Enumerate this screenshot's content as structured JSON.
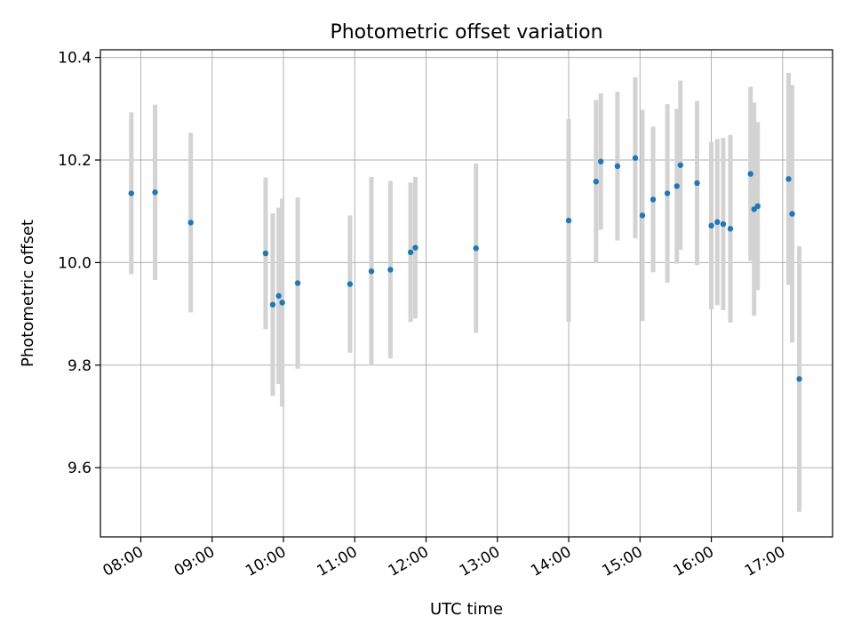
{
  "chart_data": {
    "type": "scatter",
    "title": "Photometric offset variation",
    "xlabel": "UTC time",
    "ylabel": "Photometric offset",
    "xlim": [
      "07:26",
      "17:42"
    ],
    "ylim": [
      9.465,
      10.415
    ],
    "x_ticks": [
      "08:00",
      "09:00",
      "10:00",
      "11:00",
      "12:00",
      "13:00",
      "14:00",
      "15:00",
      "16:00",
      "17:00"
    ],
    "y_ticks": [
      "9.6",
      "9.8",
      "10.0",
      "10.2",
      "10.4"
    ],
    "grid": true,
    "legend": "none",
    "point_color": "#1f77b4",
    "errorbar_color": "#d3d3d3",
    "x": [
      "07:52",
      "08:12",
      "08:42",
      "09:45",
      "09:51",
      "09:56",
      "09:59",
      "10:12",
      "10:56",
      "11:14",
      "11:30",
      "11:47",
      "11:51",
      "12:42",
      "14:00",
      "14:23",
      "14:27",
      "14:41",
      "14:56",
      "15:02",
      "15:11",
      "15:23",
      "15:31",
      "15:34",
      "15:48",
      "16:00",
      "16:05",
      "16:10",
      "16:16",
      "16:33",
      "16:36",
      "16:39",
      "17:05",
      "17:08",
      "17:14"
    ],
    "y": [
      10.135,
      10.137,
      10.078,
      10.018,
      9.918,
      9.935,
      9.922,
      9.96,
      9.958,
      9.983,
      9.986,
      10.02,
      10.029,
      10.028,
      10.082,
      10.158,
      10.197,
      10.188,
      10.204,
      10.092,
      10.123,
      10.135,
      10.149,
      10.19,
      10.155,
      10.072,
      10.079,
      10.075,
      10.066,
      10.173,
      10.104,
      10.11,
      10.163,
      10.095,
      9.773
    ],
    "yerr": [
      0.158,
      0.171,
      0.175,
      0.148,
      0.178,
      0.172,
      0.203,
      0.167,
      0.134,
      0.184,
      0.173,
      0.136,
      0.138,
      0.165,
      0.198,
      0.159,
      0.133,
      0.145,
      0.157,
      0.206,
      0.142,
      0.174,
      0.151,
      0.165,
      0.16,
      0.163,
      0.162,
      0.168,
      0.183,
      0.17,
      0.208,
      0.164,
      0.207,
      0.251,
      0.259
    ]
  }
}
